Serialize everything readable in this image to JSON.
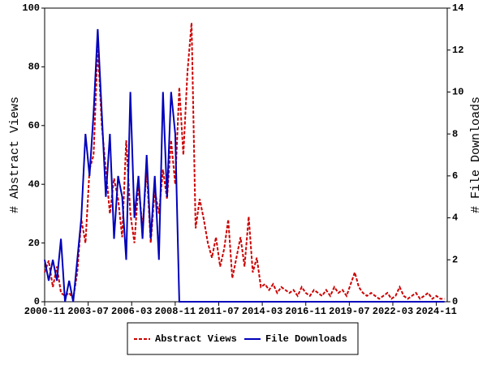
{
  "chart_data": {
    "type": "line",
    "ylabel": "# Abstract Views",
    "y2label": "# File Downloads",
    "x": [
      "2000-11",
      "2001-02",
      "2001-05",
      "2001-08",
      "2001-11",
      "2002-02",
      "2002-05",
      "2002-08",
      "2002-11",
      "2003-02",
      "2003-05",
      "2003-08",
      "2003-11",
      "2004-02",
      "2004-05",
      "2004-08",
      "2004-11",
      "2005-02",
      "2005-05",
      "2005-08",
      "2005-11",
      "2006-02",
      "2006-05",
      "2006-08",
      "2006-11",
      "2007-02",
      "2007-05",
      "2007-08",
      "2007-11",
      "2008-02",
      "2008-05",
      "2008-08",
      "2008-11",
      "2009-02",
      "2009-05",
      "2009-08",
      "2009-11",
      "2010-02",
      "2010-05",
      "2010-08",
      "2010-11",
      "2011-02",
      "2011-05",
      "2011-08",
      "2011-11",
      "2012-02",
      "2012-05",
      "2012-08",
      "2012-11",
      "2013-02",
      "2013-05",
      "2013-08",
      "2013-11",
      "2014-02",
      "2014-05",
      "2014-08",
      "2014-11",
      "2015-02",
      "2015-05",
      "2015-08",
      "2015-11",
      "2016-02",
      "2016-05",
      "2016-08",
      "2016-11",
      "2017-02",
      "2017-05",
      "2017-08",
      "2017-11",
      "2018-02",
      "2018-05",
      "2018-08",
      "2018-11",
      "2019-02",
      "2019-05",
      "2019-08",
      "2019-11",
      "2020-02",
      "2020-05",
      "2020-08",
      "2020-11",
      "2021-02",
      "2021-05",
      "2021-08",
      "2021-11",
      "2022-02",
      "2022-05",
      "2022-08",
      "2022-11",
      "2023-02",
      "2023-05",
      "2023-08",
      "2023-11",
      "2024-02",
      "2024-05",
      "2024-08",
      "2024-11",
      "2025-02",
      "2025-05"
    ],
    "series": [
      {
        "name": "Abstract Views",
        "color": "#cc0000",
        "dash": true,
        "values": [
          10,
          14,
          5,
          12,
          3,
          2,
          3,
          1,
          10,
          28,
          20,
          45,
          50,
          87,
          60,
          45,
          30,
          42,
          35,
          22,
          55,
          30,
          20,
          40,
          25,
          45,
          20,
          38,
          30,
          45,
          35,
          55,
          40,
          73,
          50,
          78,
          95,
          25,
          35,
          28,
          20,
          15,
          22,
          12,
          18,
          28,
          8,
          15,
          22,
          12,
          29,
          10,
          15,
          5,
          6,
          4,
          6,
          3,
          5,
          4,
          3,
          4,
          2,
          5,
          3,
          2,
          4,
          3,
          2,
          4,
          2,
          5,
          3,
          4,
          2,
          6,
          10,
          5,
          3,
          2,
          3,
          2,
          1,
          2,
          3,
          1,
          2,
          5,
          2,
          1,
          2,
          3,
          1,
          2,
          3,
          1,
          2,
          1,
          1
        ]
      },
      {
        "name": "File Downloads",
        "color": "#0000bb",
        "axis": "y2",
        "values": [
          2,
          1,
          2,
          1,
          3,
          0,
          1,
          0,
          2,
          4,
          8,
          6,
          9,
          13,
          9,
          5,
          8,
          3,
          6,
          5,
          2,
          10,
          4,
          6,
          3,
          7,
          3,
          6,
          2,
          10,
          5,
          10,
          8,
          0,
          0,
          0,
          0,
          0,
          0,
          0,
          0,
          0,
          0,
          0,
          0,
          0,
          0,
          0,
          0,
          0,
          0,
          0,
          0,
          0,
          0,
          0,
          0,
          0,
          0,
          0,
          0,
          0,
          0,
          0,
          0,
          0,
          0,
          0,
          0,
          0,
          0,
          0,
          0,
          0,
          0,
          0,
          0,
          0,
          0,
          0,
          0,
          0,
          0,
          0,
          0,
          0,
          0,
          0,
          0,
          0,
          0,
          0,
          0,
          0,
          0,
          0,
          0,
          0,
          0
        ]
      }
    ],
    "xlim": [
      "2000-11",
      "2025-07"
    ],
    "xticks": [
      "2000-11",
      "2003-07",
      "2006-03",
      "2008-11",
      "2011-07",
      "2014-03",
      "2016-11",
      "2019-07",
      "2022-03",
      "2024-11"
    ],
    "ylim": [
      0,
      100
    ],
    "yticks": [
      0,
      20,
      40,
      60,
      80,
      100
    ],
    "y2lim": [
      0,
      14
    ],
    "y2ticks": [
      0,
      2,
      4,
      6,
      8,
      10,
      12,
      14
    ],
    "legend": "bottom"
  }
}
